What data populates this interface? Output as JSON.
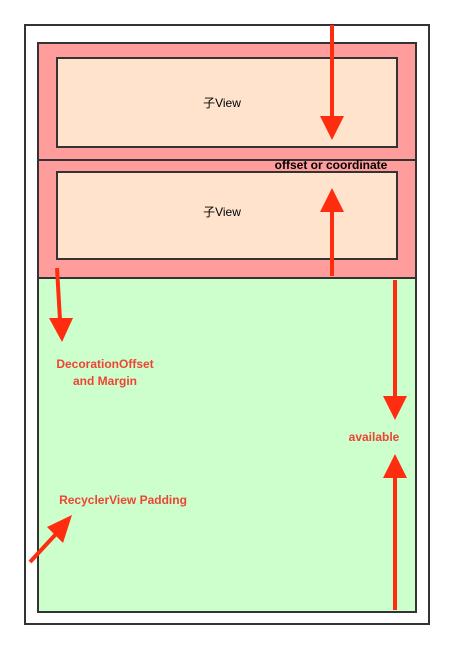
{
  "items": [
    {
      "label": "子View"
    },
    {
      "label": "子View"
    }
  ],
  "annotations": {
    "offset": "offset or coordinate",
    "decoration_line1": "DecorationOffset",
    "decoration_line2": "and Margin",
    "available": "available",
    "padding": "RecyclerView Padding"
  },
  "colors": {
    "item_outer": "#ff9c9c",
    "item_inner": "#ffe3cc",
    "free_area": "#ccffcc",
    "arrow": "#ff2d10",
    "label_red": "#ee4433",
    "outline": "#333333"
  }
}
